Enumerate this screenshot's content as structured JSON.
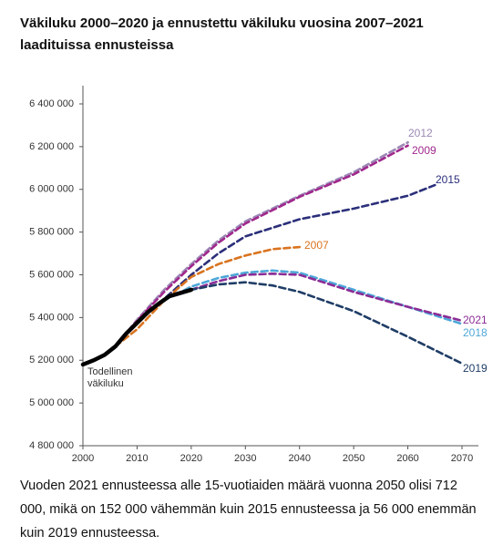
{
  "chart_data": {
    "type": "line",
    "title": "Väkiluku 2000–2020 ja ennustettu väkiluku vuosina 2007–2021 laadituissa ennusteissa",
    "caption": "Vuoden 2021 ennusteessa alle 15-vuotiaiden määrä vuonna 2050 olisi 712 000, mikä on 152 000 vähemmän kuin 2015 ennusteessa ja 56 000 enemmän kuin 2019 ennusteessa.",
    "xlim": [
      2000,
      2070
    ],
    "xticks": [
      2000,
      2010,
      2020,
      2030,
      2040,
      2050,
      2060,
      2070
    ],
    "ylim": [
      4800000,
      6400000
    ],
    "yticks": [
      {
        "value": 4800000,
        "label": "4 800 000"
      },
      {
        "value": 5000000,
        "label": "5 000 000"
      },
      {
        "value": 5200000,
        "label": "5 200 000"
      },
      {
        "value": 5400000,
        "label": "5 400 000"
      },
      {
        "value": 5600000,
        "label": "5 600 000"
      },
      {
        "value": 5800000,
        "label": "5 800 000"
      },
      {
        "value": 6000000,
        "label": "6 000 000"
      },
      {
        "value": 6200000,
        "label": "6 200 000"
      },
      {
        "value": 6400000,
        "label": "6 400 000"
      }
    ],
    "series": [
      {
        "name": "2012",
        "color": "#9b87b5",
        "dashed": true,
        "x": [
          2006,
          2010,
          2015,
          2020,
          2025,
          2030,
          2040,
          2050,
          2060
        ],
        "values": [
          5265000,
          5390000,
          5530000,
          5650000,
          5760000,
          5850000,
          5970000,
          6080000,
          6220000
        ]
      },
      {
        "name": "2009",
        "color": "#a0288c",
        "dashed": true,
        "x": [
          2008,
          2010,
          2015,
          2020,
          2025,
          2030,
          2040,
          2050,
          2060
        ],
        "values": [
          5325000,
          5385000,
          5520000,
          5640000,
          5750000,
          5840000,
          5965000,
          6070000,
          6205000
        ]
      },
      {
        "name": "2015",
        "color": "#2b2f7a",
        "dashed": true,
        "x": [
          2014,
          2020,
          2025,
          2030,
          2040,
          2050,
          2060,
          2065
        ],
        "values": [
          5465000,
          5600000,
          5700000,
          5780000,
          5860000,
          5910000,
          5970000,
          6020000
        ]
      },
      {
        "name": "2007",
        "color": "#d9731f",
        "dashed": true,
        "x": [
          2006,
          2010,
          2015,
          2020,
          2025,
          2030,
          2035,
          2040
        ],
        "values": [
          5265000,
          5345000,
          5480000,
          5590000,
          5650000,
          5690000,
          5720000,
          5730000
        ]
      },
      {
        "name": "2018",
        "color": "#4ea7d8",
        "dashed": true,
        "x": [
          2017,
          2020,
          2025,
          2030,
          2035,
          2040,
          2050,
          2060,
          2070
        ],
        "values": [
          5505000,
          5545000,
          5585000,
          5610000,
          5620000,
          5610000,
          5530000,
          5450000,
          5370000
        ]
      },
      {
        "name": "2021",
        "color": "#8b2c96",
        "dashed": true,
        "x": [
          2020,
          2025,
          2030,
          2035,
          2040,
          2050,
          2060,
          2070
        ],
        "values": [
          5530000,
          5570000,
          5600000,
          5605000,
          5600000,
          5520000,
          5450000,
          5385000
        ]
      },
      {
        "name": "2019",
        "color": "#1f3d66",
        "dashed": true,
        "x": [
          2018,
          2020,
          2025,
          2030,
          2035,
          2040,
          2050,
          2060,
          2070
        ],
        "values": [
          5515000,
          5530000,
          5555000,
          5565000,
          5550000,
          5520000,
          5430000,
          5310000,
          5185000
        ]
      },
      {
        "name": "Todellinen väkiluku",
        "color": "#000000",
        "dashed": false,
        "x": [
          2000,
          2002,
          2004,
          2006,
          2008,
          2010,
          2012,
          2014,
          2016,
          2018,
          2020
        ],
        "values": [
          5180000,
          5200000,
          5225000,
          5265000,
          5325000,
          5375000,
          5425000,
          5465000,
          5500000,
          5515000,
          5530000
        ]
      }
    ]
  }
}
